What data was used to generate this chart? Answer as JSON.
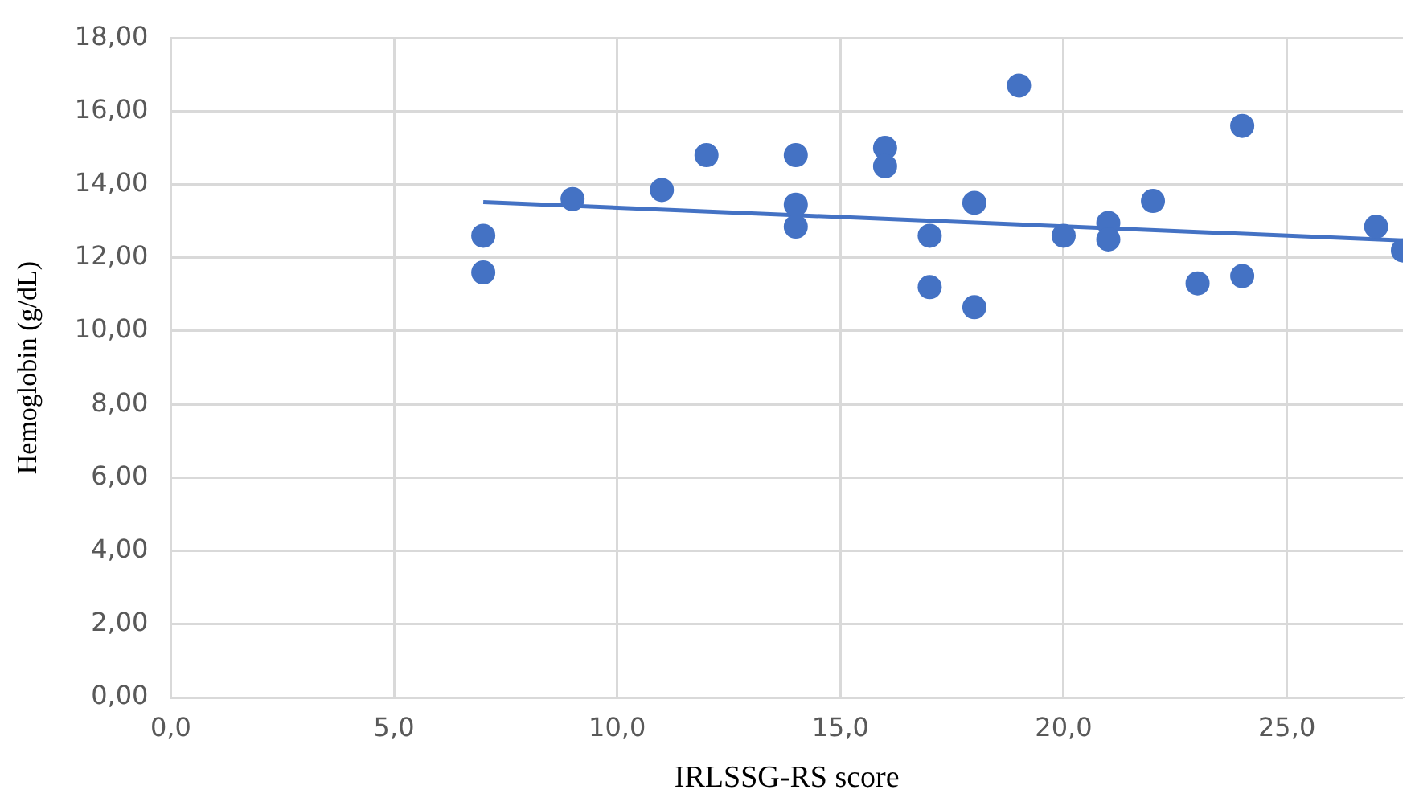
{
  "chart_data": {
    "type": "scatter",
    "xlabel": "IRLSSG-RS score",
    "ylabel": "Hemoglobin (g/dL)",
    "xlim": [
      0,
      27.6
    ],
    "ylim": [
      0,
      18
    ],
    "xticks": [
      {
        "value": 0,
        "label": "0,0"
      },
      {
        "value": 5,
        "label": "5,0"
      },
      {
        "value": 10,
        "label": "10,0"
      },
      {
        "value": 15,
        "label": "15,0"
      },
      {
        "value": 20,
        "label": "20,0"
      },
      {
        "value": 25,
        "label": "25,0"
      }
    ],
    "yticks": [
      {
        "value": 0,
        "label": "0,00"
      },
      {
        "value": 2,
        "label": "2,00"
      },
      {
        "value": 4,
        "label": "4,00"
      },
      {
        "value": 6,
        "label": "6,00"
      },
      {
        "value": 8,
        "label": "8,00"
      },
      {
        "value": 10,
        "label": "10,00"
      },
      {
        "value": 12,
        "label": "12,00"
      },
      {
        "value": 14,
        "label": "14,00"
      },
      {
        "value": 16,
        "label": "16,00"
      },
      {
        "value": 18,
        "label": "18,00"
      }
    ],
    "grid": true,
    "legend": false,
    "marker": "circle",
    "series": [
      {
        "type": "scatter",
        "color": "#4472c4",
        "x": [
          7,
          7,
          9,
          11,
          12,
          14,
          14,
          14,
          16,
          16,
          17,
          17,
          18,
          18,
          19,
          20,
          21,
          21,
          22,
          23,
          24,
          24,
          27,
          27.6
        ],
        "values": [
          12.6,
          11.6,
          13.6,
          13.85,
          14.8,
          14.8,
          13.45,
          12.85,
          15.0,
          14.5,
          12.6,
          11.2,
          13.5,
          10.65,
          16.7,
          12.6,
          12.95,
          12.5,
          13.55,
          11.3,
          15.6,
          11.5,
          12.85,
          12.2
        ]
      },
      {
        "type": "line",
        "color": "#4472c4",
        "x": [
          7,
          27.6
        ],
        "values": [
          13.52,
          12.47
        ],
        "marker": "none",
        "line_style": "solid"
      }
    ]
  }
}
